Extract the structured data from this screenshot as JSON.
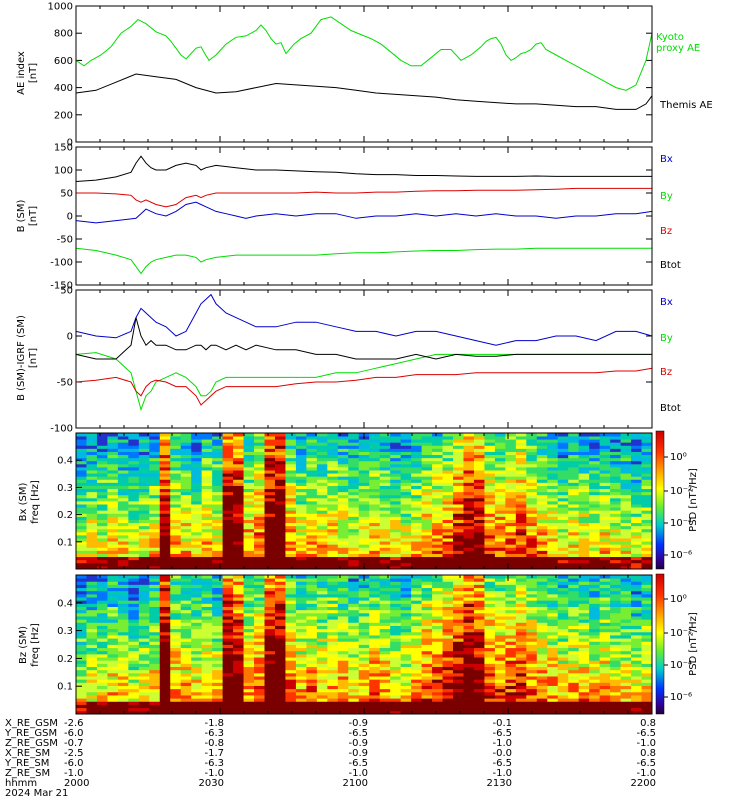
{
  "colors": {
    "black": "#000000",
    "green": "#00dd00",
    "blue": "#0000cc",
    "red": "#dd0000"
  },
  "chart_data": [
    {
      "type": "line",
      "panel": "ae",
      "ylabel_lines": [
        "AE index",
        "[nT]"
      ],
      "ylim": [
        0,
        1000
      ],
      "yticks": [
        "0",
        "200",
        "400",
        "600",
        "800",
        "1000"
      ],
      "xlim_hhmm": [
        "2000",
        "2200"
      ],
      "series": [
        {
          "name": "Kyoto proxy AE",
          "name_lines": [
            "Kyoto",
            "proxy AE"
          ],
          "color": "green",
          "x": [
            0,
            8,
            15,
            25,
            35,
            45,
            55,
            62,
            70,
            80,
            90,
            95,
            100,
            105,
            110,
            120,
            125,
            128,
            133,
            140,
            150,
            160,
            170,
            180,
            185,
            190,
            195,
            200,
            205,
            210,
            218,
            225,
            235,
            245,
            255,
            265,
            275,
            285,
            295,
            305,
            315,
            325,
            335,
            345,
            355,
            365,
            375,
            385,
            395,
            405,
            410,
            415,
            420,
            425,
            430,
            435,
            440,
            445,
            450,
            455,
            460,
            465,
            470,
            480,
            490,
            500,
            510,
            520,
            530,
            540,
            550,
            560,
            570,
            576
          ],
          "y": [
            600,
            560,
            600,
            640,
            700,
            800,
            850,
            900,
            870,
            810,
            780,
            740,
            690,
            640,
            610,
            690,
            700,
            660,
            600,
            640,
            720,
            770,
            780,
            820,
            860,
            820,
            760,
            720,
            730,
            650,
            720,
            760,
            800,
            900,
            920,
            870,
            820,
            790,
            760,
            720,
            660,
            600,
            560,
            560,
            620,
            680,
            680,
            600,
            640,
            700,
            740,
            760,
            770,
            720,
            640,
            600,
            620,
            650,
            660,
            680,
            720,
            730,
            680,
            640,
            600,
            560,
            520,
            480,
            440,
            400,
            380,
            420,
            600,
            800
          ]
        },
        {
          "name": "Themis AE",
          "color": "black",
          "x": [
            0,
            20,
            40,
            60,
            80,
            100,
            120,
            140,
            160,
            180,
            200,
            220,
            240,
            260,
            280,
            300,
            320,
            340,
            360,
            380,
            400,
            420,
            440,
            460,
            480,
            500,
            520,
            540,
            560,
            570,
            576
          ],
          "y": [
            360,
            380,
            440,
            500,
            480,
            460,
            400,
            360,
            370,
            400,
            430,
            420,
            410,
            400,
            380,
            360,
            350,
            340,
            330,
            310,
            300,
            290,
            280,
            280,
            270,
            260,
            260,
            240,
            240,
            280,
            340
          ]
        }
      ]
    },
    {
      "type": "line",
      "panel": "b_sm",
      "ylabel_lines": [
        "B (SM)",
        "[nT]"
      ],
      "ylim": [
        -150,
        150
      ],
      "yticks": [
        "-150",
        "-100",
        "-50",
        "0",
        "50",
        "100",
        "150"
      ],
      "series": [
        {
          "name": "Bx",
          "color": "blue",
          "x": [
            0,
            20,
            40,
            60,
            65,
            70,
            75,
            80,
            90,
            100,
            110,
            120,
            125,
            130,
            140,
            150,
            160,
            170,
            180,
            200,
            220,
            240,
            260,
            280,
            300,
            320,
            340,
            360,
            380,
            400,
            420,
            440,
            460,
            480,
            500,
            520,
            540,
            560,
            576
          ],
          "y": [
            -10,
            -15,
            -10,
            -5,
            5,
            15,
            10,
            5,
            0,
            10,
            25,
            30,
            25,
            20,
            10,
            5,
            0,
            -5,
            0,
            5,
            0,
            5,
            5,
            -5,
            0,
            0,
            5,
            0,
            5,
            0,
            5,
            0,
            0,
            -5,
            0,
            0,
            5,
            5,
            10
          ]
        },
        {
          "name": "By",
          "color": "green",
          "x": [
            0,
            20,
            40,
            55,
            60,
            65,
            70,
            75,
            80,
            90,
            100,
            110,
            120,
            125,
            130,
            140,
            160,
            180,
            200,
            220,
            240,
            260,
            280,
            300,
            320,
            340,
            360,
            380,
            400,
            420,
            440,
            460,
            480,
            500,
            520,
            540,
            560,
            576
          ],
          "y": [
            -70,
            -75,
            -85,
            -95,
            -110,
            -125,
            -110,
            -100,
            -95,
            -90,
            -85,
            -85,
            -90,
            -100,
            -95,
            -90,
            -85,
            -85,
            -85,
            -85,
            -85,
            -82,
            -80,
            -80,
            -78,
            -76,
            -75,
            -75,
            -73,
            -72,
            -72,
            -70,
            -70,
            -70,
            -70,
            -70,
            -70,
            -70
          ]
        },
        {
          "name": "Bz",
          "color": "red",
          "x": [
            0,
            20,
            40,
            55,
            60,
            65,
            70,
            80,
            90,
            100,
            110,
            120,
            125,
            130,
            140,
            160,
            180,
            200,
            220,
            240,
            260,
            280,
            300,
            320,
            340,
            360,
            380,
            400,
            420,
            440,
            460,
            480,
            500,
            520,
            540,
            560,
            576
          ],
          "y": [
            50,
            50,
            48,
            45,
            35,
            30,
            35,
            25,
            20,
            25,
            40,
            45,
            40,
            45,
            50,
            50,
            50,
            50,
            50,
            52,
            50,
            50,
            52,
            52,
            54,
            55,
            55,
            56,
            56,
            56,
            57,
            58,
            60,
            60,
            60,
            60,
            60
          ]
        },
        {
          "name": "Btot",
          "color": "black",
          "x": [
            0,
            20,
            40,
            55,
            60,
            65,
            70,
            75,
            80,
            90,
            100,
            110,
            120,
            125,
            130,
            140,
            160,
            180,
            200,
            220,
            240,
            260,
            280,
            300,
            320,
            340,
            360,
            380,
            400,
            420,
            440,
            460,
            480,
            500,
            520,
            540,
            560,
            576
          ],
          "y": [
            75,
            78,
            85,
            95,
            115,
            130,
            115,
            105,
            100,
            100,
            110,
            115,
            110,
            100,
            105,
            110,
            105,
            100,
            100,
            98,
            96,
            95,
            92,
            90,
            90,
            88,
            88,
            87,
            86,
            86,
            86,
            87,
            86,
            86,
            86,
            86,
            86,
            86
          ]
        }
      ]
    },
    {
      "type": "line",
      "panel": "b_igrf",
      "ylabel_lines": [
        "B (SM)-IGRF (SM)",
        "[nT]"
      ],
      "ylim": [
        -100,
        50
      ],
      "yticks": [
        "-100",
        "-50",
        "0",
        "50"
      ],
      "series": [
        {
          "name": "Bx",
          "color": "blue",
          "x": [
            0,
            20,
            40,
            55,
            60,
            65,
            70,
            75,
            80,
            90,
            100,
            110,
            120,
            125,
            130,
            135,
            140,
            150,
            160,
            170,
            180,
            200,
            220,
            240,
            260,
            280,
            300,
            320,
            340,
            360,
            380,
            400,
            420,
            440,
            460,
            480,
            500,
            520,
            540,
            560,
            576
          ],
          "y": [
            5,
            0,
            -2,
            5,
            20,
            30,
            25,
            20,
            15,
            10,
            0,
            5,
            25,
            35,
            40,
            45,
            35,
            25,
            20,
            15,
            10,
            10,
            15,
            15,
            10,
            5,
            5,
            0,
            5,
            5,
            0,
            -5,
            -10,
            -5,
            -5,
            0,
            0,
            -5,
            5,
            5,
            0
          ]
        },
        {
          "name": "By",
          "color": "green",
          "x": [
            0,
            20,
            40,
            55,
            60,
            65,
            70,
            75,
            80,
            90,
            100,
            110,
            120,
            125,
            130,
            135,
            140,
            150,
            160,
            170,
            180,
            200,
            220,
            240,
            260,
            280,
            300,
            320,
            340,
            360,
            380,
            400,
            420,
            440,
            460,
            480,
            500,
            520,
            540,
            560,
            576
          ],
          "y": [
            -20,
            -18,
            -25,
            -40,
            -60,
            -80,
            -65,
            -60,
            -50,
            -45,
            -40,
            -45,
            -55,
            -65,
            -65,
            -60,
            -50,
            -45,
            -45,
            -45,
            -45,
            -45,
            -45,
            -45,
            -40,
            -40,
            -35,
            -30,
            -25,
            -20,
            -20,
            -20,
            -20,
            -20,
            -20,
            -20,
            -20,
            -20,
            -20,
            -20,
            -20
          ]
        },
        {
          "name": "Bz",
          "color": "red",
          "x": [
            0,
            20,
            40,
            55,
            60,
            65,
            70,
            75,
            80,
            90,
            100,
            110,
            120,
            125,
            130,
            135,
            140,
            150,
            160,
            170,
            180,
            200,
            220,
            240,
            260,
            280,
            300,
            320,
            340,
            360,
            380,
            400,
            420,
            440,
            460,
            480,
            500,
            520,
            540,
            560,
            576
          ],
          "y": [
            -50,
            -48,
            -45,
            -50,
            -60,
            -65,
            -55,
            -50,
            -48,
            -50,
            -55,
            -55,
            -65,
            -75,
            -70,
            -65,
            -60,
            -55,
            -55,
            -55,
            -55,
            -55,
            -52,
            -50,
            -50,
            -48,
            -45,
            -45,
            -42,
            -42,
            -42,
            -40,
            -40,
            -40,
            -40,
            -40,
            -40,
            -40,
            -38,
            -38,
            -35
          ]
        },
        {
          "name": "Btot",
          "color": "black",
          "x": [
            0,
            20,
            40,
            55,
            60,
            65,
            70,
            75,
            80,
            90,
            100,
            110,
            120,
            125,
            130,
            135,
            140,
            150,
            160,
            170,
            180,
            200,
            220,
            240,
            260,
            280,
            300,
            320,
            340,
            360,
            380,
            400,
            420,
            440,
            460,
            480,
            500,
            520,
            540,
            560,
            576
          ],
          "y": [
            -20,
            -25,
            -25,
            -10,
            20,
            0,
            -10,
            -5,
            -10,
            -10,
            -15,
            -15,
            -10,
            -10,
            -15,
            -10,
            -10,
            -15,
            -10,
            -15,
            -10,
            -15,
            -15,
            -20,
            -20,
            -25,
            -25,
            -25,
            -20,
            -25,
            -20,
            -22,
            -22,
            -20,
            -20,
            -20,
            -20,
            -20,
            -20,
            -20,
            -20
          ]
        }
      ]
    },
    {
      "type": "heatmap",
      "panel": "bx_psd",
      "ylabel_lines": [
        "Bx (SM)",
        "freq [Hz]"
      ],
      "ylim": [
        0,
        0.5
      ],
      "yticks": [
        "0.1",
        "0.2",
        "0.3",
        "0.4"
      ],
      "colorbar_label": "PSD [nT²/Hz]",
      "colorbar_ticks": [
        "10⁰",
        "10⁻²",
        "10⁻⁴",
        "10⁻⁶"
      ],
      "column_intensity": [
        0.35,
        0.4,
        0.4,
        0.45,
        0.4,
        0.35,
        0.4,
        0.45,
        0.85,
        0.5,
        0.45,
        0.4,
        0.5,
        0.45,
        0.9,
        0.85,
        0.5,
        0.6,
        0.9,
        0.95,
        0.55,
        0.45,
        0.5,
        0.45,
        0.5,
        0.45,
        0.4,
        0.45,
        0.5,
        0.45,
        0.4,
        0.4,
        0.45,
        0.5,
        0.55,
        0.6,
        0.7,
        0.85,
        0.8,
        0.6,
        0.55,
        0.6,
        0.65,
        0.55,
        0.5,
        0.45,
        0.4,
        0.45,
        0.45,
        0.4,
        0.45,
        0.4,
        0.4,
        0.35,
        0.4
      ]
    },
    {
      "type": "heatmap",
      "panel": "bz_psd",
      "ylabel_lines": [
        "Bz (SM)",
        "freq [Hz]"
      ],
      "ylim": [
        0,
        0.5
      ],
      "yticks": [
        "0.1",
        "0.2",
        "0.3",
        "0.4"
      ],
      "colorbar_label": "PSD [nT²/Hz]",
      "colorbar_ticks": [
        "10⁰",
        "10⁻²",
        "10⁻⁴",
        "10⁻⁶"
      ],
      "column_intensity": [
        0.35,
        0.4,
        0.4,
        0.45,
        0.45,
        0.35,
        0.4,
        0.45,
        0.95,
        0.55,
        0.5,
        0.45,
        0.5,
        0.45,
        0.9,
        0.85,
        0.55,
        0.6,
        0.9,
        0.95,
        0.6,
        0.5,
        0.55,
        0.5,
        0.55,
        0.5,
        0.45,
        0.5,
        0.55,
        0.5,
        0.45,
        0.45,
        0.55,
        0.6,
        0.65,
        0.7,
        0.8,
        0.9,
        0.85,
        0.65,
        0.6,
        0.65,
        0.7,
        0.6,
        0.55,
        0.5,
        0.45,
        0.5,
        0.5,
        0.45,
        0.5,
        0.45,
        0.45,
        0.4,
        0.45
      ]
    }
  ],
  "bottom_table": {
    "labels": [
      "X_RE_GSM",
      "Y_RE_GSM",
      "Z_RE_GSM",
      "X_RE_SM",
      "Y_RE_SM",
      "Z_RE_SM",
      "hhmm",
      "2024 Mar 21"
    ],
    "columns": [
      [
        "-2.6",
        "-6.0",
        "-0.7",
        "-2.5",
        "-6.0",
        "-1.0",
        "2000"
      ],
      [
        "-1.8",
        "-6.3",
        "-0.8",
        "-1.7",
        "-6.3",
        "-1.0",
        "2030"
      ],
      [
        "-0.9",
        "-6.5",
        "-0.9",
        "-0.9",
        "-6.5",
        "-1.0",
        "2100"
      ],
      [
        "-0.1",
        "-6.5",
        "-1.0",
        "-0.0",
        "-6.5",
        "-1.0",
        "2130"
      ],
      [
        "0.8",
        "-6.5",
        "-1.0",
        "0.8",
        "-6.5",
        "-1.0",
        "2200"
      ]
    ]
  }
}
